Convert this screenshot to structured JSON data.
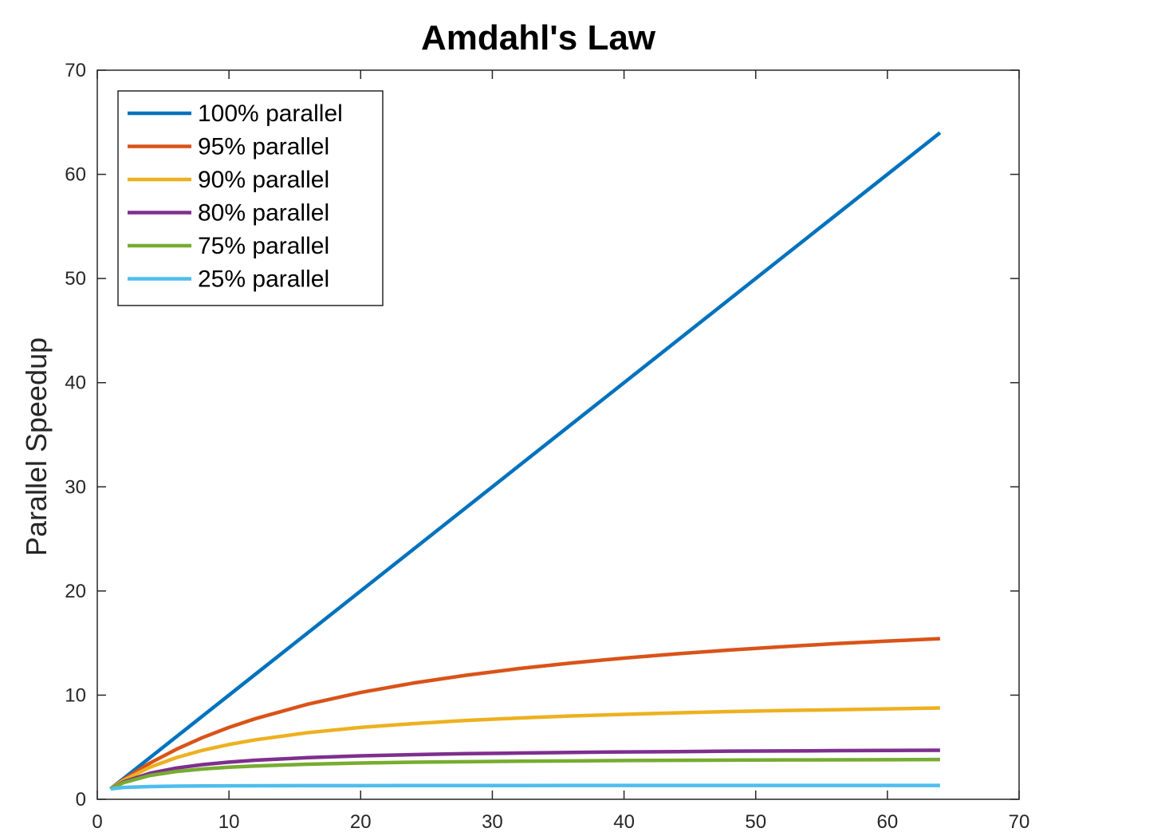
{
  "chart_data": {
    "type": "line",
    "title": "Amdahl's Law",
    "xlabel": "",
    "ylabel": "Parallel Speedup",
    "xlim": [
      0,
      70
    ],
    "ylim": [
      0,
      70
    ],
    "xticks": [
      0,
      10,
      20,
      30,
      40,
      50,
      60,
      70
    ],
    "yticks": [
      0,
      10,
      20,
      30,
      40,
      50,
      60,
      70
    ],
    "grid": false,
    "legend_position": "top-left",
    "x": [
      1,
      2,
      4,
      6,
      8,
      10,
      12,
      16,
      20,
      24,
      28,
      32,
      36,
      40,
      44,
      48,
      52,
      56,
      60,
      64
    ],
    "series": [
      {
        "name": "100% parallel",
        "color": "#0072BD",
        "values": [
          1,
          2,
          4,
          6,
          8,
          10,
          12,
          16,
          20,
          24,
          28,
          32,
          36,
          40,
          44,
          48,
          52,
          56,
          60,
          64
        ]
      },
      {
        "name": "95% parallel",
        "color": "#D95319",
        "values": [
          1,
          1.9,
          3.48,
          4.8,
          5.93,
          6.9,
          7.74,
          9.14,
          10.26,
          11.16,
          11.91,
          12.55,
          13.09,
          13.56,
          13.97,
          14.33,
          14.65,
          14.94,
          15.19,
          15.42
        ]
      },
      {
        "name": "90% parallel",
        "color": "#EDB120",
        "values": [
          1,
          1.82,
          3.08,
          4.0,
          4.71,
          5.26,
          5.71,
          6.4,
          6.9,
          7.27,
          7.57,
          7.8,
          8.0,
          8.16,
          8.3,
          8.42,
          8.52,
          8.6,
          8.68,
          8.77
        ]
      },
      {
        "name": "80% parallel",
        "color": "#7E2F8E",
        "values": [
          1,
          1.67,
          2.5,
          3.0,
          3.33,
          3.57,
          3.75,
          4.0,
          4.17,
          4.29,
          4.38,
          4.44,
          4.5,
          4.55,
          4.58,
          4.62,
          4.64,
          4.67,
          4.69,
          4.71
        ]
      },
      {
        "name": "75% parallel",
        "color": "#77AC30",
        "values": [
          1,
          1.6,
          2.29,
          2.67,
          2.91,
          3.08,
          3.2,
          3.37,
          3.48,
          3.56,
          3.61,
          3.66,
          3.69,
          3.72,
          3.74,
          3.76,
          3.78,
          3.79,
          3.8,
          3.82
        ]
      },
      {
        "name": "25% parallel",
        "color": "#4DBEEE",
        "values": [
          1,
          1.14,
          1.23,
          1.26,
          1.28,
          1.29,
          1.3,
          1.31,
          1.31,
          1.32,
          1.32,
          1.32,
          1.33,
          1.33,
          1.33,
          1.33,
          1.33,
          1.33,
          1.33,
          1.33
        ]
      }
    ]
  }
}
